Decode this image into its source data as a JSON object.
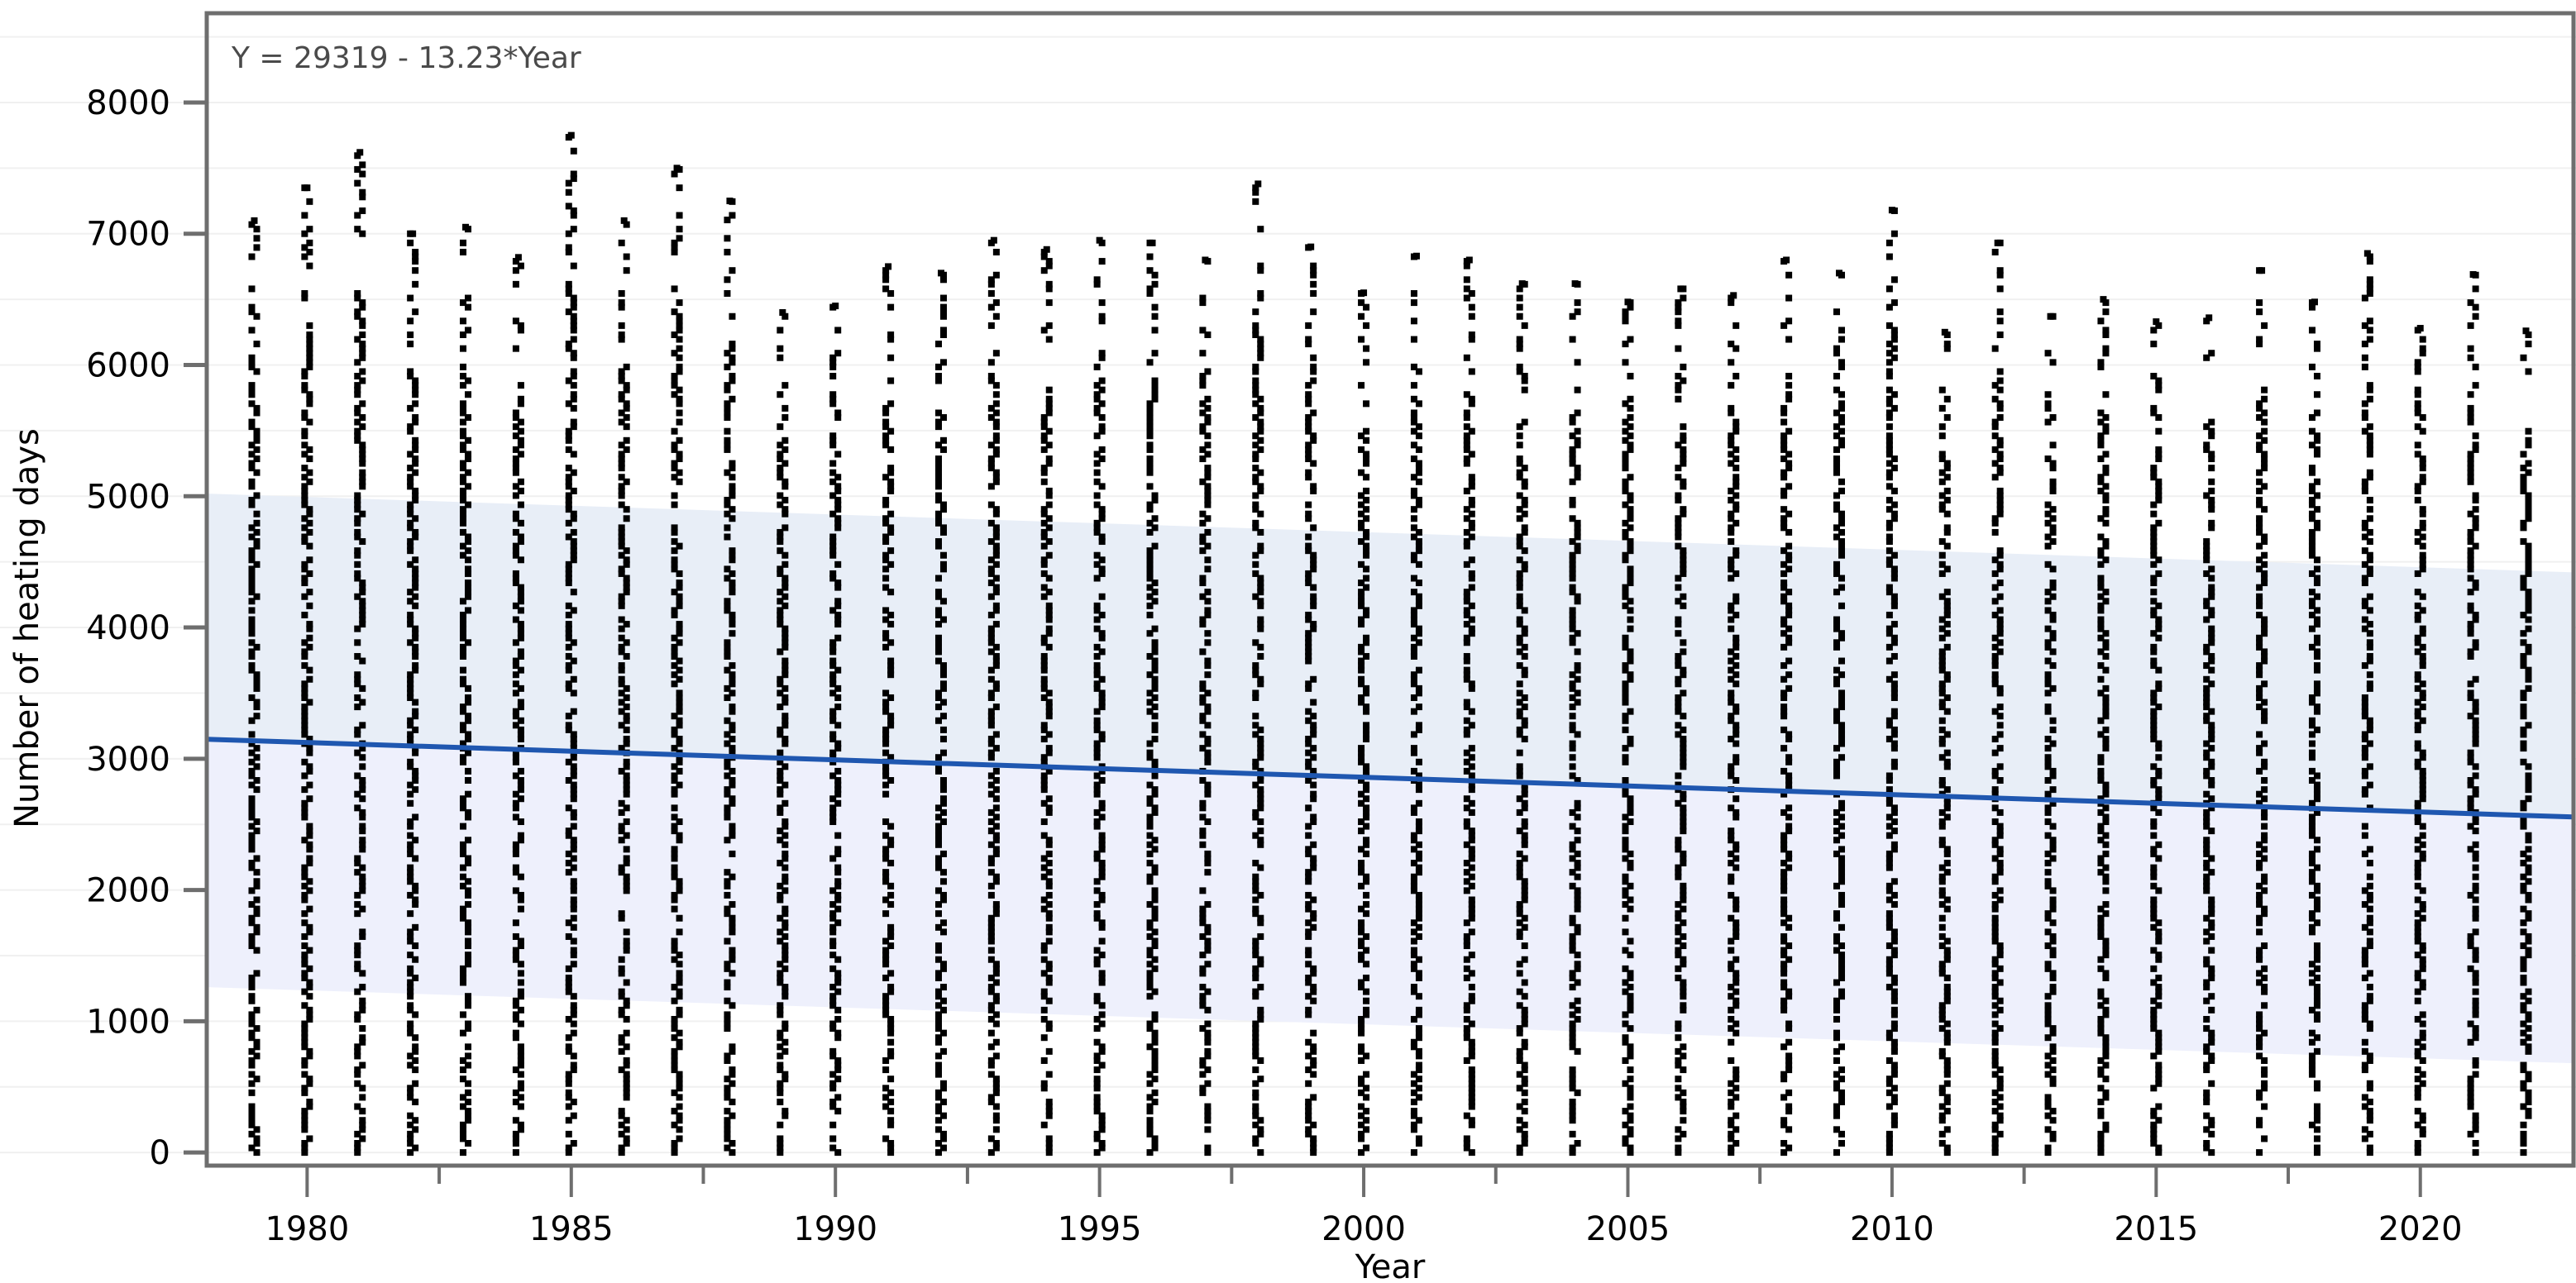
{
  "chart_data": {
    "type": "scatter",
    "title": "",
    "xlabel": "Year",
    "ylabel": "Number of heating days",
    "xlim": [
      1978.1,
      2022.9
    ],
    "ylim": [
      -100,
      8680
    ],
    "x_ticks": [
      "1980",
      "1985",
      "1990",
      "1995",
      "2000",
      "2005",
      "2010",
      "2015",
      "2020"
    ],
    "y_ticks": [
      "0",
      "1000",
      "2000",
      "3000",
      "4000",
      "5000",
      "6000",
      "7000",
      "8000"
    ],
    "grid": true,
    "annotation": "Y = 29319 - 13.23*Year",
    "fit": {
      "intercept": 29319,
      "slope": -13.23
    },
    "prediction_band": {
      "x": [
        1978.1,
        2022.9
      ],
      "upper": [
        5020,
        4420
      ],
      "lower": [
        1260,
        680
      ]
    },
    "years": [
      1979,
      1980,
      1981,
      1982,
      1983,
      1984,
      1985,
      1986,
      1987,
      1988,
      1989,
      1990,
      1991,
      1992,
      1993,
      1994,
      1995,
      1996,
      1997,
      1998,
      1999,
      2000,
      2001,
      2002,
      2003,
      2004,
      2005,
      2006,
      2007,
      2008,
      2009,
      2010,
      2011,
      2012,
      2013,
      2014,
      2015,
      2016,
      2017,
      2018,
      2019,
      2020,
      2021,
      2022
    ],
    "per_year_min": [
      0,
      0,
      0,
      0,
      0,
      0,
      0,
      0,
      0,
      0,
      0,
      0,
      0,
      0,
      0,
      0,
      0,
      0,
      0,
      0,
      0,
      0,
      0,
      0,
      0,
      0,
      0,
      0,
      0,
      0,
      0,
      0,
      0,
      0,
      0,
      0,
      0,
      0,
      0,
      0,
      0,
      0,
      0,
      0
    ],
    "per_year_max": [
      7100,
      7350,
      7620,
      7000,
      7050,
      6820,
      7750,
      7100,
      7500,
      7250,
      6400,
      6450,
      6750,
      6700,
      6950,
      6880,
      6950,
      6930,
      6800,
      7380,
      6900,
      6550,
      6830,
      6800,
      6620,
      6620,
      6480,
      6580,
      6530,
      6800,
      6700,
      7180,
      6250,
      6930,
      6370,
      6500,
      6330,
      6360,
      6720,
      6480,
      6850,
      6280,
      6690,
      6260
    ],
    "colors": {
      "points": "#000000",
      "fit_line": "#1f57b0",
      "band_upper": "#e8eef7",
      "band_lower": "#eef0fc",
      "frame": "#6e6e6e"
    }
  }
}
